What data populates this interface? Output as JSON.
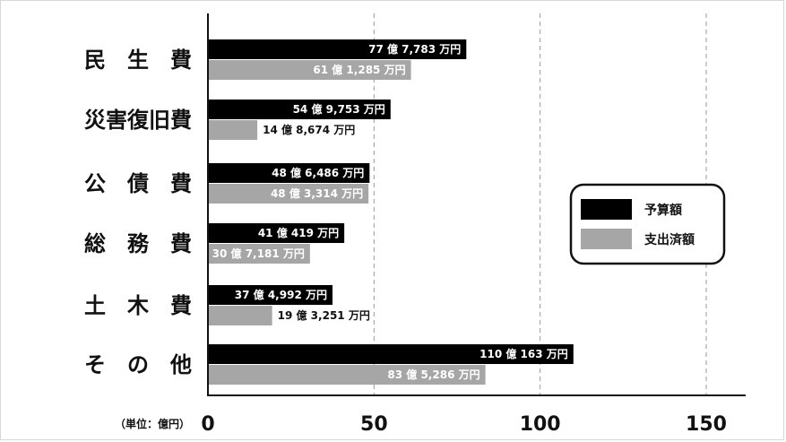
{
  "chart_data": {
    "type": "bar",
    "orientation": "horizontal",
    "categories": [
      "民生費",
      "災害復旧費",
      "公債費",
      "総務費",
      "土木費",
      "その他"
    ],
    "category_display": [
      "民　生　費",
      "災害復旧費",
      "公　債　費",
      "総　務　費",
      "土　木　費",
      "そ　の　他"
    ],
    "series": [
      {
        "name": "予算額",
        "color": "#000000",
        "values": [
          77.7783,
          54.9753,
          48.6486,
          41.0419,
          37.4992,
          110.0163
        ],
        "labels": [
          "77 億 7,783 万円",
          "54 億 9,753 万円",
          "48 億 6,486 万円",
          "41 億 419 万円",
          "37 億 4,992 万円",
          "110 億 163 万円"
        ]
      },
      {
        "name": "支出済額",
        "color": "#a6a6a6",
        "values": [
          61.1285,
          14.8674,
          48.3314,
          30.7181,
          19.3251,
          83.5286
        ],
        "labels": [
          "61 億 1,285 万円",
          "14 億 8,674 万円",
          "48 億 3,314 万円",
          "30 億 7,181 万円",
          "19 億 3,251 万円",
          "83 億 5,286 万円"
        ]
      }
    ],
    "xlim": [
      0,
      160
    ],
    "xticks": [
      0,
      50,
      100,
      150
    ],
    "xtick_labels": [
      "0",
      "50",
      "100",
      "150"
    ],
    "unit_label": "（単位：億円）",
    "grid": "vertical dashed",
    "legend": {
      "position": "right",
      "entries": [
        "予算額",
        "支出済額"
      ]
    }
  }
}
